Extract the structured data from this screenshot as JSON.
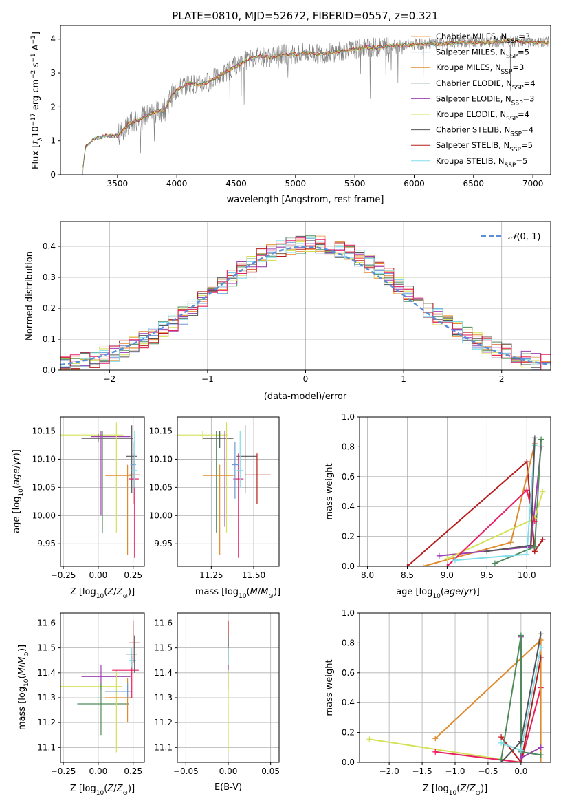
{
  "figure_title": "PLATE=0810, MJD=52672, FIBERID=0557, z=0.321",
  "colors": {
    "Chabrier MILES": "#f4a259",
    "Salpeter MILES": "#6b9bd2",
    "Kroupa MILES": "#e08a2c",
    "Chabrier ELODIE": "#4f8a5b",
    "Salpeter ELODIE": "#9c3fb0",
    "Kroupa ELODIE": "#d4e157",
    "Chabrier STELIB": "#555555",
    "Salpeter STELIB": "#b71c1c",
    "Kroupa STELIB": "#80deea",
    "pink": "#e91e63",
    "data": "#808080",
    "normal": "#5b8dd9"
  },
  "chart_data": [
    {
      "id": "spectrum",
      "type": "line",
      "title": "PLATE=0810, MJD=52672, FIBERID=0557, z=0.321",
      "xlabel": "wavelength [Angstrom, rest frame]",
      "ylabel": "Flux [fλ10⁻¹⁷ erg cm⁻² s⁻¹ A⁻¹]",
      "xlim": [
        3020,
        7150
      ],
      "ylim": [
        0,
        4.4
      ],
      "xticks": [
        3500,
        4000,
        4500,
        5000,
        5500,
        6000,
        6500,
        7000
      ],
      "yticks": [
        0,
        1,
        2,
        3,
        4
      ],
      "legend": [
        {
          "label": "Chabrier MILES, N_SSP=3",
          "base": "Chabrier MILES, N",
          "sub": "SSP",
          "tail": "=3"
        },
        {
          "label": "Salpeter MILES, N_SSP=5",
          "base": "Salpeter MILES, N",
          "sub": "SSP",
          "tail": "=5"
        },
        {
          "label": "Kroupa MILES, N_SSP=3",
          "base": "Kroupa MILES, N",
          "sub": "SSP",
          "tail": "=3"
        },
        {
          "label": "Chabrier ELODIE, N_SSP=4",
          "base": "Chabrier ELODIE, N",
          "sub": "SSP",
          "tail": "=4"
        },
        {
          "label": "Salpeter ELODIE, N_SSP=3",
          "base": "Salpeter ELODIE, N",
          "sub": "SSP",
          "tail": "=3"
        },
        {
          "label": "Kroupa ELODIE, N_SSP=4",
          "base": "Kroupa ELODIE, N",
          "sub": "SSP",
          "tail": "=4"
        },
        {
          "label": "Chabrier STELIB, N_SSP=4",
          "base": "Chabrier STELIB, N",
          "sub": "SSP",
          "tail": "=4"
        },
        {
          "label": "Salpeter STELIB, N_SSP=5",
          "base": "Salpeter STELIB, N",
          "sub": "SSP",
          "tail": "=5"
        },
        {
          "label": "Kroupa STELIB, N_SSP=5",
          "base": "Kroupa STELIB, N",
          "sub": "SSP",
          "tail": "=5"
        }
      ],
      "legend_placement": "upper-right",
      "continuum": [
        [
          3210,
          0.2
        ],
        [
          3230,
          0.82
        ],
        [
          3300,
          1.05
        ],
        [
          3400,
          1.15
        ],
        [
          3500,
          1.15
        ],
        [
          3600,
          1.5
        ],
        [
          3700,
          1.65
        ],
        [
          3800,
          1.85
        ],
        [
          3900,
          1.9
        ],
        [
          3950,
          2.3
        ],
        [
          4000,
          2.5
        ],
        [
          4100,
          2.7
        ],
        [
          4200,
          2.65
        ],
        [
          4300,
          2.8
        ],
        [
          4400,
          3.0
        ],
        [
          4500,
          3.2
        ],
        [
          4600,
          3.4
        ],
        [
          4700,
          3.5
        ],
        [
          4800,
          3.45
        ],
        [
          4900,
          3.55
        ],
        [
          5000,
          3.55
        ],
        [
          5100,
          3.6
        ],
        [
          5200,
          3.55
        ],
        [
          5300,
          3.6
        ],
        [
          5400,
          3.65
        ],
        [
          5500,
          3.7
        ],
        [
          5600,
          3.75
        ],
        [
          5700,
          3.75
        ],
        [
          5800,
          3.8
        ],
        [
          5900,
          3.8
        ],
        [
          6000,
          3.85
        ],
        [
          6200,
          3.85
        ],
        [
          6400,
          3.9
        ],
        [
          6600,
          3.9
        ],
        [
          6800,
          3.95
        ],
        [
          7000,
          3.9
        ],
        [
          7140,
          3.9
        ]
      ],
      "grid": false
    },
    {
      "id": "residuals",
      "type": "line",
      "xlabel": "(data-model)/error",
      "ylabel": "Normed distribution",
      "xlim": [
        -2.5,
        2.5
      ],
      "ylim": [
        0,
        0.48
      ],
      "xticks": [
        -2,
        -1,
        0,
        1,
        2
      ],
      "yticks": [
        0.0,
        0.1,
        0.2,
        0.3,
        0.4
      ],
      "legend": [
        {
          "label": "N(0,1)"
        }
      ],
      "legend_placement": "upper-right",
      "bin_width": 0.1,
      "grid": true
    },
    {
      "id": "age_Z",
      "type": "scatter",
      "xlabel": "Z [log10(Z/Z⊙)]",
      "ylabel": "age [log10(age/yr)]",
      "xlim": [
        -0.27,
        0.33
      ],
      "ylim": [
        9.91,
        10.175
      ],
      "xticks": [
        -0.25,
        0.0,
        0.25
      ],
      "yticks": [
        9.95,
        10.0,
        10.05,
        10.1,
        10.15
      ],
      "points": [
        {
          "s": "Kroupa ELODIE",
          "x": 0.0,
          "y": 10.143,
          "xe": [
            -0.28,
            0.18
          ],
          "ye": [
            10.135,
            10.15
          ]
        },
        {
          "s": "Chabrier STELIB",
          "x": 0.0,
          "y": 10.137,
          "xe": [
            -0.12,
            0.25
          ],
          "ye": [
            10.13,
            10.145
          ]
        },
        {
          "s": "Salpeter ELODIE",
          "x": 0.02,
          "y": 10.14,
          "xe": [
            -0.05,
            0.23
          ],
          "ye": [
            10.0,
            10.15
          ]
        },
        {
          "s": "Chabrier ELODIE",
          "x": 0.03,
          "y": 10.12,
          "xe": [
            0.03,
            0.03
          ],
          "ye": [
            9.97,
            10.15
          ]
        },
        {
          "s": "Kroupa ELODIE",
          "x": 0.13,
          "y": 10.13,
          "xe": [
            0.13,
            0.13
          ],
          "ye": [
            9.97,
            10.165
          ]
        },
        {
          "s": "Kroupa MILES",
          "x": 0.21,
          "y": 10.071,
          "xe": [
            0.05,
            0.24
          ],
          "ye": [
            9.93,
            10.09
          ]
        },
        {
          "s": "Salpeter STELIB",
          "x": 0.25,
          "y": 10.072,
          "xe": [
            0.22,
            0.3
          ],
          "ye": [
            10.02,
            10.11
          ]
        },
        {
          "s": "Chabrier STELIB",
          "x": 0.24,
          "y": 10.105,
          "xe": [
            0.2,
            0.28
          ],
          "ye": [
            10.04,
            10.16
          ]
        },
        {
          "s": "pink",
          "x": 0.26,
          "y": 10.065,
          "xe": [
            0.22,
            0.29
          ],
          "ye": [
            9.925,
            10.11
          ]
        },
        {
          "s": "Salpeter MILES",
          "x": 0.25,
          "y": 10.09,
          "xe": [
            0.23,
            0.27
          ],
          "ye": [
            10.04,
            10.13
          ]
        },
        {
          "s": "Kroupa STELIB",
          "x": 0.26,
          "y": 10.08,
          "xe": [
            0.24,
            0.28
          ],
          "ye": [
            10.05,
            10.15
          ]
        }
      ],
      "grid": true
    },
    {
      "id": "age_mass",
      "type": "scatter",
      "xlabel": "mass [log10(M/M⊙)]",
      "xlim": [
        11.05,
        11.65
      ],
      "ylim": [
        9.91,
        10.175
      ],
      "xticks": [
        11.25,
        11.5
      ],
      "xtick_labels": [
        "11.25",
        "11.50"
      ],
      "yticks": [
        9.95,
        10.0,
        10.05,
        10.1,
        10.15
      ],
      "points": [
        {
          "s": "Kroupa ELODIE",
          "x": 11.2,
          "y": 10.143,
          "xe": [
            11.05,
            11.35
          ],
          "ye": [
            10.135,
            10.15
          ]
        },
        {
          "s": "Chabrier STELIB",
          "x": 11.3,
          "y": 10.137,
          "xe": [
            11.2,
            11.38
          ],
          "ye": [
            10.12,
            10.15
          ]
        },
        {
          "s": "Chabrier ELODIE",
          "x": 11.28,
          "y": 10.12,
          "xe": [
            11.28,
            11.28
          ],
          "ye": [
            9.97,
            10.15
          ]
        },
        {
          "s": "Salpeter ELODIE",
          "x": 11.33,
          "y": 10.12,
          "xe": [
            11.33,
            11.33
          ],
          "ye": [
            9.98,
            10.15
          ]
        },
        {
          "s": "Kroupa ELODIE",
          "x": 11.34,
          "y": 10.13,
          "xe": [
            11.34,
            11.34
          ],
          "ye": [
            9.97,
            10.165
          ]
        },
        {
          "s": "Kroupa MILES",
          "x": 11.3,
          "y": 10.071,
          "xe": [
            11.2,
            11.39
          ],
          "ye": [
            9.93,
            10.09
          ]
        },
        {
          "s": "Chabrier STELIB",
          "x": 11.45,
          "y": 10.105,
          "xe": [
            11.4,
            11.52
          ],
          "ye": [
            10.04,
            10.16
          ]
        },
        {
          "s": "Salpeter STELIB",
          "x": 11.52,
          "y": 10.072,
          "xe": [
            11.45,
            11.6
          ],
          "ye": [
            10.02,
            10.11
          ]
        },
        {
          "s": "pink",
          "x": 11.41,
          "y": 10.065,
          "xe": [
            11.38,
            11.44
          ],
          "ye": [
            9.925,
            10.11
          ]
        },
        {
          "s": "Kroupa STELIB",
          "x": 11.42,
          "y": 10.08,
          "xe": [
            11.4,
            11.44
          ],
          "ye": [
            10.05,
            10.15
          ]
        },
        {
          "s": "Salpeter MILES",
          "x": 11.39,
          "y": 10.09,
          "xe": [
            11.37,
            11.41
          ],
          "ye": [
            10.03,
            10.13
          ]
        }
      ],
      "grid": true
    },
    {
      "id": "weight_age",
      "type": "line",
      "xlabel": "age [log10(age/yr)]",
      "ylabel": "mass weight",
      "xlim": [
        7.9,
        10.3
      ],
      "ylim": [
        0,
        1.0
      ],
      "xticks": [
        8.0,
        8.5,
        9.0,
        9.5,
        10.0
      ],
      "yticks": [
        0.0,
        0.2,
        0.4,
        0.6,
        0.8,
        1.0
      ],
      "series": [
        {
          "s": "Salpeter STELIB",
          "x": [
            8.5,
            10.0,
            10.1,
            10.2
          ],
          "y": [
            0.0,
            0.7,
            0.1,
            0.18
          ]
        },
        {
          "s": "Kroupa MILES",
          "x": [
            8.7,
            9.8,
            10.1
          ],
          "y": [
            0.0,
            0.16,
            0.82
          ]
        },
        {
          "s": "Salpeter ELODIE",
          "x": [
            8.9,
            10.05,
            10.18
          ],
          "y": [
            0.07,
            0.13,
            0.8
          ]
        },
        {
          "s": "Chabrier ELODIE",
          "x": [
            9.6,
            10.1,
            10.18
          ],
          "y": [
            0.02,
            0.13,
            0.85
          ]
        },
        {
          "s": "Kroupa ELODIE",
          "x": [
            9.0,
            10.1,
            10.2
          ],
          "y": [
            0.05,
            0.32,
            0.5
          ]
        },
        {
          "s": "pink",
          "x": [
            9.0,
            10.0,
            10.1
          ],
          "y": [
            0.0,
            0.51,
            0.3
          ]
        },
        {
          "s": "Kroupa STELIB",
          "x": [
            9.1,
            10.0,
            10.1
          ],
          "y": [
            0.04,
            0.08,
            0.81
          ]
        },
        {
          "s": "Chabrier STELIB",
          "x": [
            9.5,
            10.05,
            10.1
          ],
          "y": [
            0.1,
            0.14,
            0.86
          ]
        }
      ],
      "grid": true
    },
    {
      "id": "mass_Z",
      "type": "scatter",
      "xlabel": "Z [log10(Z/Z⊙)]",
      "ylabel": "mass [log10(M/M⊙)]",
      "xlim": [
        -0.27,
        0.33
      ],
      "ylim": [
        11.04,
        11.64
      ],
      "xticks": [
        -0.25,
        0.0,
        0.25
      ],
      "yticks": [
        11.1,
        11.2,
        11.3,
        11.4,
        11.5,
        11.6
      ],
      "points": [
        {
          "s": "Salpeter ELODIE",
          "x": 0.02,
          "y": 11.385,
          "xe": [
            -0.12,
            0.23
          ],
          "ye": [
            11.33,
            11.43
          ]
        },
        {
          "s": "Kroupa ELODIE",
          "x": 0.0,
          "y": 11.345,
          "xe": [
            -0.27,
            0.17
          ],
          "ye": [
            11.34,
            11.35
          ]
        },
        {
          "s": "Chabrier ELODIE",
          "x": 0.02,
          "y": 11.275,
          "xe": [
            -0.15,
            0.22
          ],
          "ye": [
            11.15,
            11.36
          ]
        },
        {
          "s": "Kroupa ELODIE",
          "x": 0.13,
          "y": 11.25,
          "xe": [
            0.13,
            0.13
          ],
          "ye": [
            11.08,
            11.41
          ]
        },
        {
          "s": "Kroupa MILES",
          "x": 0.21,
          "y": 11.3,
          "xe": [
            0.05,
            0.24
          ],
          "ye": [
            11.2,
            11.38
          ]
        },
        {
          "s": "Salpeter MILES",
          "x": 0.21,
          "y": 11.325,
          "xe": [
            0.05,
            0.24
          ],
          "ye": [
            11.3,
            11.36
          ]
        },
        {
          "s": "pink",
          "x": 0.24,
          "y": 11.41,
          "xe": [
            0.1,
            0.29
          ],
          "ye": [
            11.3,
            11.47
          ]
        },
        {
          "s": "Kroupa STELIB",
          "x": 0.24,
          "y": 11.45,
          "xe": [
            0.22,
            0.27
          ],
          "ye": [
            11.42,
            11.5
          ]
        },
        {
          "s": "Chabrier STELIB",
          "x": 0.26,
          "y": 11.475,
          "xe": [
            0.2,
            0.28
          ],
          "ye": [
            11.4,
            11.55
          ]
        },
        {
          "s": "Salpeter STELIB",
          "x": 0.25,
          "y": 11.52,
          "xe": [
            0.22,
            0.3
          ],
          "ye": [
            11.44,
            11.61
          ]
        }
      ],
      "grid": true
    },
    {
      "id": "mass_EBV",
      "type": "scatter",
      "xlabel": "E(B-V)",
      "xlim": [
        -0.06,
        0.06
      ],
      "ylim": [
        11.04,
        11.64
      ],
      "xticks": [
        -0.05,
        0.0,
        0.05
      ],
      "xtick_labels": [
        "−0.05",
        "0.00",
        "0.05"
      ],
      "yticks": [
        11.1,
        11.2,
        11.3,
        11.4,
        11.5,
        11.6
      ],
      "points": [
        {
          "s": "Salpeter STELIB",
          "x": 0.0,
          "y": 11.52,
          "xe": [
            0,
            0
          ],
          "ye": [
            11.45,
            11.61
          ]
        },
        {
          "s": "Chabrier STELIB",
          "x": 0.0,
          "y": 11.475,
          "xe": [
            0,
            0
          ],
          "ye": [
            11.42,
            11.55
          ]
        },
        {
          "s": "Kroupa STELIB",
          "x": 0.0,
          "y": 11.45,
          "xe": [
            0,
            0
          ],
          "ye": [
            11.4,
            11.5
          ]
        },
        {
          "s": "Salpeter ELODIE",
          "x": 0.0,
          "y": 11.385,
          "xe": [
            0,
            0
          ],
          "ye": [
            11.33,
            11.43
          ]
        },
        {
          "s": "Kroupa ELODIE",
          "x": 0.0,
          "y": 11.25,
          "xe": [
            0,
            0
          ],
          "ye": [
            11.08,
            11.41
          ]
        }
      ],
      "grid": true
    },
    {
      "id": "weight_Z",
      "type": "line",
      "xlabel": "Z [log10(Z/Z⊙)]",
      "ylabel": "mass weight",
      "xlim": [
        -2.45,
        0.45
      ],
      "ylim": [
        0,
        1.0
      ],
      "xticks": [
        -2.0,
        -1.5,
        -1.0,
        -0.5,
        0.0
      ],
      "xtick_labels": [
        "−2.0",
        "−1.5",
        "−1.0",
        "−0.5",
        "0.0"
      ],
      "yticks": [
        0.0,
        0.2,
        0.4,
        0.6,
        0.8,
        1.0
      ],
      "series": [
        {
          "s": "Kroupa ELODIE",
          "x": [
            -2.3,
            0.0,
            0.3,
            0.3
          ],
          "y": [
            0.155,
            0.0,
            0.5,
            0.5
          ]
        },
        {
          "s": "pink",
          "x": [
            -1.3,
            0.0,
            0.3
          ],
          "y": [
            0.07,
            0.0,
            0.5
          ]
        },
        {
          "s": "Kroupa MILES",
          "x": [
            -1.3,
            0.3,
            0.3
          ],
          "y": [
            0.16,
            0.82,
            0.0
          ]
        },
        {
          "s": "Salpeter STELIB",
          "x": [
            -0.3,
            0.0,
            0.3
          ],
          "y": [
            0.17,
            0.0,
            0.7
          ]
        },
        {
          "s": "Salpeter ELODIE",
          "x": [
            0.0,
            0.0,
            0.3
          ],
          "y": [
            0.84,
            0.03,
            0.1
          ]
        },
        {
          "s": "Chabrier ELODIE",
          "x": [
            -0.3,
            0.0,
            0.0,
            0.3
          ],
          "y": [
            0.02,
            0.85,
            0.07,
            0.05
          ]
        },
        {
          "s": "Kroupa STELIB",
          "x": [
            -0.3,
            0.0,
            0.3
          ],
          "y": [
            0.13,
            0.08,
            0.77
          ]
        },
        {
          "s": "Chabrier STELIB",
          "x": [
            -0.3,
            0.0,
            0.3
          ],
          "y": [
            0.0,
            0.14,
            0.86
          ]
        }
      ],
      "grid": true
    }
  ]
}
